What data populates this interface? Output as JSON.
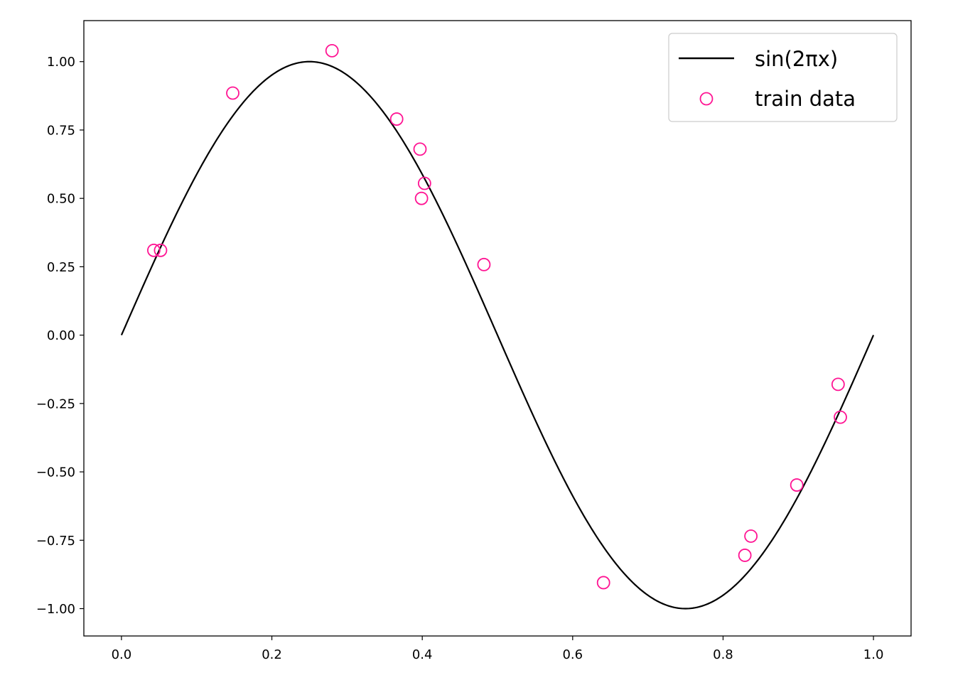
{
  "chart_data": {
    "type": "scatter",
    "title": "",
    "xlabel": "",
    "ylabel": "",
    "xlim": [
      -0.05,
      1.05
    ],
    "ylim": [
      -1.1,
      1.15
    ],
    "grid": false,
    "legend_placement": "top-right",
    "x_ticks": [
      {
        "value": 0.0,
        "label": "0.0"
      },
      {
        "value": 0.2,
        "label": "0.2"
      },
      {
        "value": 0.4,
        "label": "0.4"
      },
      {
        "value": 0.6,
        "label": "0.6"
      },
      {
        "value": 0.8,
        "label": "0.8"
      },
      {
        "value": 1.0,
        "label": "1.0"
      }
    ],
    "y_ticks": [
      {
        "value": 1.0,
        "label": "1.00"
      },
      {
        "value": 0.75,
        "label": "0.75"
      },
      {
        "value": 0.5,
        "label": "0.50"
      },
      {
        "value": 0.25,
        "label": "0.25"
      },
      {
        "value": 0.0,
        "label": "0.00"
      },
      {
        "value": -0.25,
        "label": "−0.25"
      },
      {
        "value": -0.5,
        "label": "−0.50"
      },
      {
        "value": -0.75,
        "label": "−0.75"
      },
      {
        "value": -1.0,
        "label": "−1.00"
      }
    ],
    "series": [
      {
        "name": "sin(2πx)",
        "kind": "line",
        "function": "sin(2*pi*x)",
        "x_range": [
          0.0,
          1.0
        ],
        "color": "#000000"
      },
      {
        "name": "train data",
        "kind": "scatter",
        "marker": "open-circle",
        "color": "#ff1493",
        "points": [
          {
            "x": 0.043,
            "y": 0.31
          },
          {
            "x": 0.052,
            "y": 0.31
          },
          {
            "x": 0.148,
            "y": 0.885
          },
          {
            "x": 0.28,
            "y": 1.04
          },
          {
            "x": 0.366,
            "y": 0.79
          },
          {
            "x": 0.397,
            "y": 0.68
          },
          {
            "x": 0.403,
            "y": 0.555
          },
          {
            "x": 0.399,
            "y": 0.5
          },
          {
            "x": 0.482,
            "y": 0.258
          },
          {
            "x": 0.641,
            "y": -0.905
          },
          {
            "x": 0.829,
            "y": -0.805
          },
          {
            "x": 0.837,
            "y": -0.735
          },
          {
            "x": 0.898,
            "y": -0.548
          },
          {
            "x": 0.953,
            "y": -0.18
          },
          {
            "x": 0.956,
            "y": -0.3
          }
        ]
      }
    ]
  }
}
